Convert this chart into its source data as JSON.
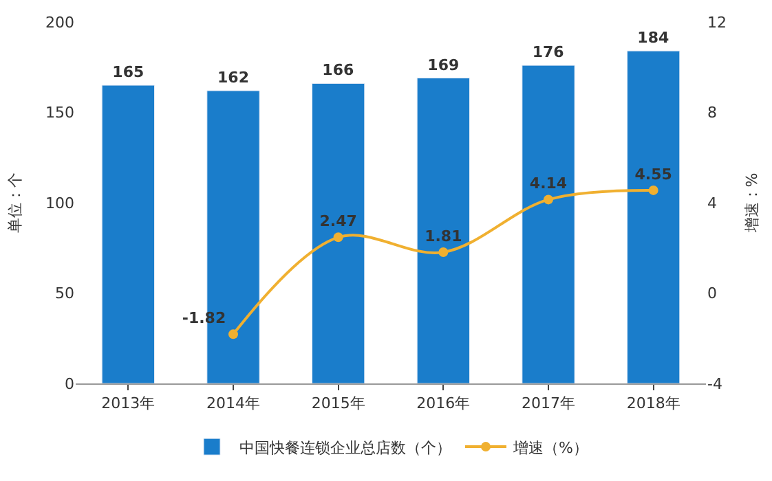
{
  "chart_data": {
    "type": "bar",
    "categories": [
      "2013年",
      "2014年",
      "2015年",
      "2016年",
      "2017年",
      "2018年"
    ],
    "series": [
      {
        "name": "中国快餐连锁企业总店数（个）",
        "color": "#1a7dcb",
        "values": [
          165,
          162,
          166,
          169,
          176,
          184
        ]
      },
      {
        "name": "增速（%）",
        "type": "line",
        "axis": "y2",
        "color": "#f0b030",
        "values": [
          null,
          -1.82,
          2.47,
          1.81,
          4.14,
          4.55
        ]
      }
    ],
    "ylabel": "单位：个",
    "y2label": "增速：%",
    "ylim": [
      0,
      200
    ],
    "yticks": [
      0,
      50,
      100,
      150,
      200
    ],
    "y2lim": [
      -4,
      12
    ],
    "y2ticks": [
      -4,
      0,
      4,
      8,
      12
    ],
    "data_labels": true,
    "legend": "bottom",
    "marker": "circle",
    "line_style": "solid"
  }
}
